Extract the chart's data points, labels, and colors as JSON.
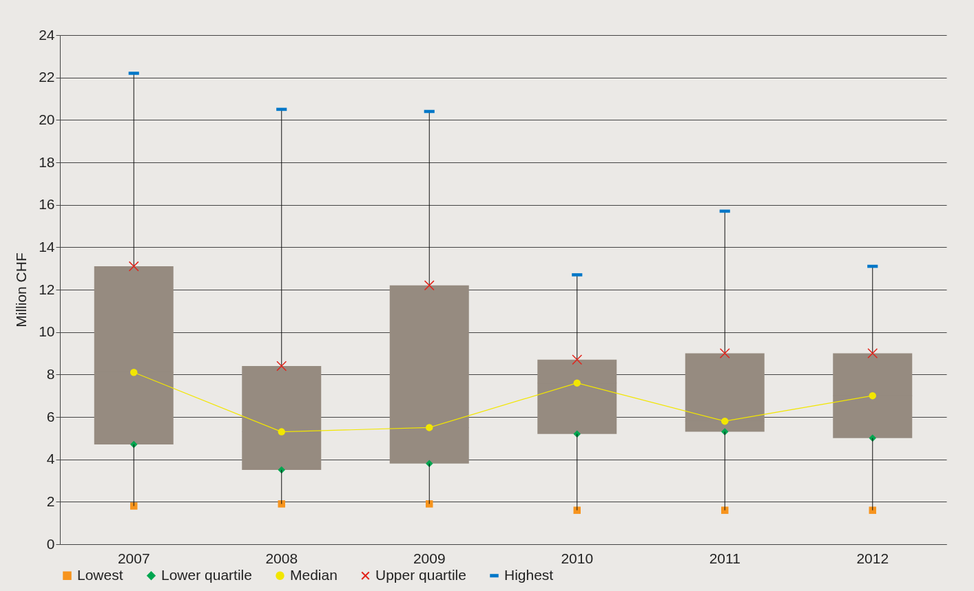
{
  "chart_data": {
    "type": "box",
    "ylabel": "Million CHF",
    "color": "#968b80",
    "categories": [
      "2007",
      "2008",
      "2009",
      "2010",
      "2011",
      "2012"
    ],
    "boxes": [
      {
        "low": 1.8,
        "q1": 4.7,
        "median": 8.1,
        "q3": 13.1,
        "high": 22.2
      },
      {
        "low": 1.9,
        "q1": 3.5,
        "median": 5.3,
        "q3": 8.4,
        "high": 20.5
      },
      {
        "low": 1.9,
        "q1": 3.8,
        "median": 5.5,
        "q3": 12.2,
        "high": 20.4
      },
      {
        "low": 1.6,
        "q1": 5.2,
        "median": 7.6,
        "q3": 8.7,
        "high": 12.7
      },
      {
        "low": 1.6,
        "q1": 5.3,
        "median": 5.8,
        "q3": 9.0,
        "high": 15.7
      },
      {
        "low": 1.6,
        "q1": 5.0,
        "median": 7.0,
        "q3": 9.0,
        "high": 13.1
      }
    ],
    "series": [
      {
        "name": "Lowest",
        "type": "scatter",
        "marker": "square",
        "color": "#f7941d",
        "values": [
          1.8,
          1.9,
          1.9,
          1.6,
          1.6,
          1.6
        ]
      },
      {
        "name": "Lower quartile",
        "type": "scatter",
        "marker": "diamond",
        "color": "#00a650",
        "values": [
          4.7,
          3.5,
          3.8,
          5.2,
          5.3,
          5.0
        ]
      },
      {
        "name": "Median",
        "type": "line",
        "marker": "circle",
        "color": "#f2e600",
        "values": [
          8.1,
          5.3,
          5.5,
          7.6,
          5.8,
          7.0
        ]
      },
      {
        "name": "Upper quartile",
        "type": "scatter",
        "marker": "cross",
        "color": "#e2231a",
        "values": [
          13.1,
          8.4,
          12.2,
          8.7,
          9.0,
          9.0
        ]
      },
      {
        "name": "Highest",
        "type": "scatter",
        "color": "#0077c8",
        "values": [
          22.2,
          20.5,
          20.4,
          12.7,
          15.7,
          13.1
        ]
      }
    ],
    "ylim": [
      0,
      24
    ],
    "yticks": [
      0,
      2,
      4,
      6,
      8,
      10,
      12,
      14,
      16,
      18,
      20,
      22,
      24
    ],
    "grid": "y",
    "legend": "bottom left"
  }
}
